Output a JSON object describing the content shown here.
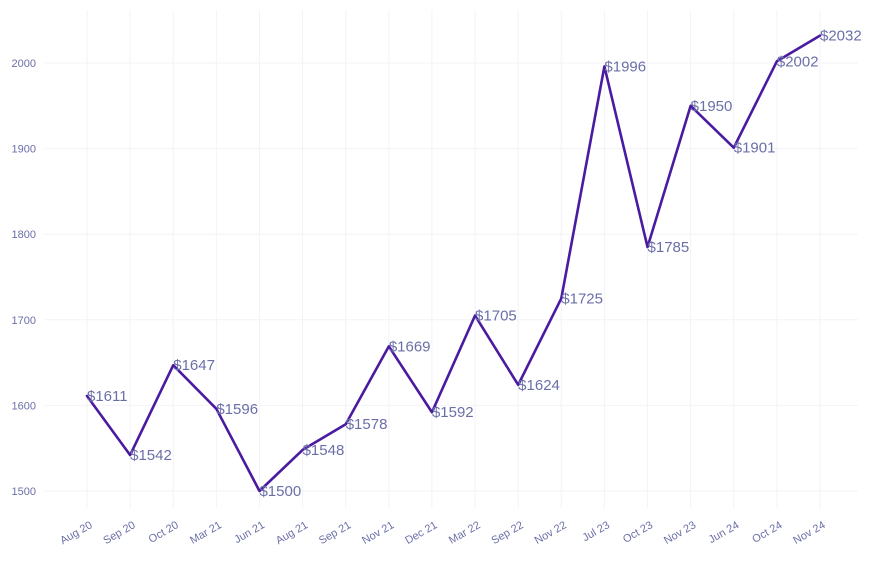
{
  "chart_data": {
    "type": "line",
    "categories": [
      "Aug 20",
      "Sep 20",
      "Oct 20",
      "Mar 21",
      "Jun 21",
      "Aug 21",
      "Sep 21",
      "Nov 21",
      "Dec 21",
      "Mar 22",
      "Sep 22",
      "Nov 22",
      "Jul 23",
      "Oct 23",
      "Nov 23",
      "Jun 24",
      "Oct 24",
      "Nov 24"
    ],
    "series": [
      {
        "values": [
          1611,
          1542,
          1647,
          1596,
          1500,
          1548,
          1578,
          1669,
          1592,
          1705,
          1624,
          1725,
          1996,
          1785,
          1950,
          1901,
          2002,
          2032
        ],
        "labels": [
          "$1611",
          "$1542",
          "$1647",
          "$1596",
          "$1500",
          "$1548",
          "$1578",
          "$1669",
          "$1592",
          "$1705",
          "$1624",
          "$1725",
          "$1996",
          "$1785",
          "$1950",
          "$1901",
          "$2002",
          "$2032"
        ],
        "color": "#4a1aa0"
      }
    ],
    "yticks": [
      "1500",
      "1600",
      "1700",
      "1800",
      "1900",
      "2000"
    ],
    "ylim": [
      1500,
      2000
    ],
    "grid": true,
    "title": "",
    "xlabel": "",
    "ylabel": ""
  }
}
